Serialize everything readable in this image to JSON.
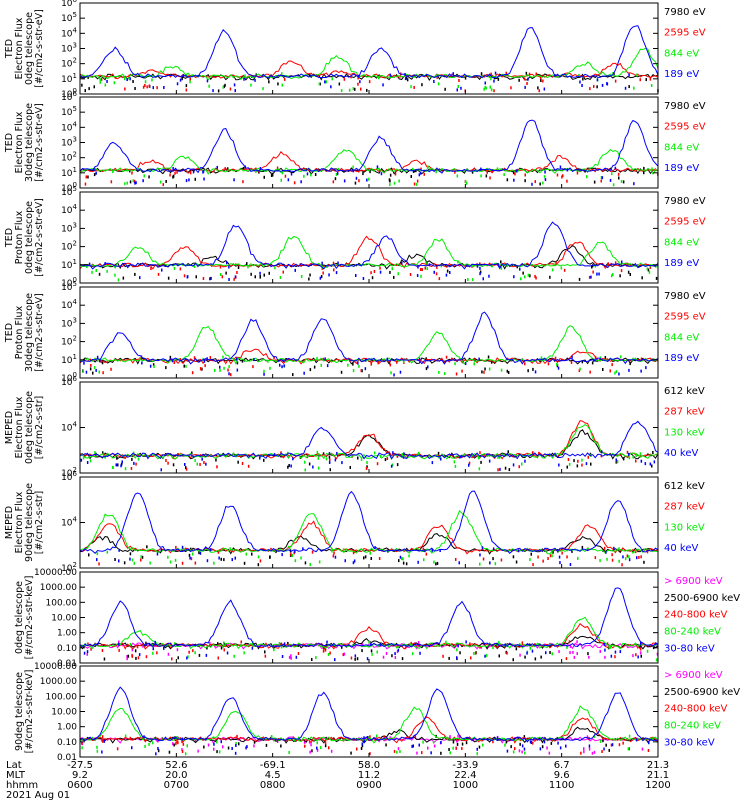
{
  "colors": {
    "black": "#000000",
    "red": "#ff0000",
    "green": "#00ee00",
    "blue": "#0000ff",
    "magenta": "#ff00ff"
  },
  "chart_data": [
    {
      "type": "scatter",
      "ylabel": [
        "TED",
        "Electron Flux",
        "0deg telescope",
        "[#/cm2-s-str-eV]"
      ],
      "yscale": "log",
      "ylim_exp": [
        0,
        6
      ],
      "yticks": [
        "10^0",
        "10^1",
        "10^2",
        "10^3",
        "10^4",
        "10^5",
        "10^6"
      ],
      "series": [
        {
          "name": "7980 eV",
          "color": "#000000",
          "peaks": [
            {
              "t": 0.395,
              "v": 0.9
            },
            {
              "t": 0.6,
              "v": 1.0
            }
          ]
        },
        {
          "name": "2595 eV",
          "color": "#ff0000",
          "peaks": [
            {
              "t": 0.12,
              "v": 1.5
            },
            {
              "t": 0.365,
              "v": 2.2
            },
            {
              "t": 0.45,
              "v": 1.5
            },
            {
              "t": 0.83,
              "v": 1.3
            },
            {
              "t": 0.925,
              "v": 2.0
            }
          ]
        },
        {
          "name": "844 eV",
          "color": "#00ee00",
          "peaks": [
            {
              "t": 0.16,
              "v": 1.8
            },
            {
              "t": 0.445,
              "v": 2.5
            },
            {
              "t": 0.875,
              "v": 2.0
            },
            {
              "t": 0.975,
              "v": 3.0
            }
          ]
        },
        {
          "name": "189 eV",
          "color": "#0000ff",
          "peaks": [
            {
              "t": 0.06,
              "v": 3.0
            },
            {
              "t": 0.25,
              "v": 4.2
            },
            {
              "t": 0.52,
              "v": 3.0
            },
            {
              "t": 0.78,
              "v": 4.4
            },
            {
              "t": 0.96,
              "v": 4.6
            }
          ]
        }
      ]
    },
    {
      "type": "scatter",
      "ylabel": [
        "TED",
        "Electron Flux",
        "30deg telescope",
        "[#/cm2-s-str-eV]"
      ],
      "yscale": "log",
      "ylim_exp": [
        0,
        6
      ],
      "yticks": [
        "10^0",
        "10^1",
        "10^2",
        "10^3",
        "10^4",
        "10^5",
        "10^6"
      ],
      "series": [
        {
          "name": "7980 eV",
          "color": "#000000",
          "peaks": [
            {
              "t": 0.35,
              "v": 1.0
            },
            {
              "t": 0.85,
              "v": 1.1
            }
          ]
        },
        {
          "name": "2595 eV",
          "color": "#ff0000",
          "peaks": [
            {
              "t": 0.12,
              "v": 1.8
            },
            {
              "t": 0.35,
              "v": 2.3
            },
            {
              "t": 0.58,
              "v": 1.8
            },
            {
              "t": 0.83,
              "v": 2.0
            }
          ]
        },
        {
          "name": "844 eV",
          "color": "#00ee00",
          "peaks": [
            {
              "t": 0.18,
              "v": 2.0
            },
            {
              "t": 0.46,
              "v": 2.5
            },
            {
              "t": 0.92,
              "v": 2.5
            }
          ]
        },
        {
          "name": "189 eV",
          "color": "#0000ff",
          "peaks": [
            {
              "t": 0.06,
              "v": 3.0
            },
            {
              "t": 0.25,
              "v": 3.8
            },
            {
              "t": 0.52,
              "v": 3.3
            },
            {
              "t": 0.78,
              "v": 4.5
            },
            {
              "t": 0.96,
              "v": 4.4
            }
          ]
        }
      ]
    },
    {
      "type": "scatter",
      "ylabel": [
        "TED",
        "Proton Flux",
        "0deg telescope",
        "[#/cm2-s-str-eV]"
      ],
      "yscale": "log",
      "ylim_exp": [
        0,
        5
      ],
      "yticks": [
        "10^0",
        "10^1",
        "10^2",
        "10^3",
        "10^4",
        "10^5"
      ],
      "series": [
        {
          "name": "7980 eV",
          "color": "#000000",
          "peaks": [
            {
              "t": 0.23,
              "v": 1.4
            },
            {
              "t": 0.58,
              "v": 1.5
            },
            {
              "t": 0.85,
              "v": 2.0
            }
          ]
        },
        {
          "name": "2595 eV",
          "color": "#ff0000",
          "peaks": [
            {
              "t": 0.18,
              "v": 2.0
            },
            {
              "t": 0.5,
              "v": 2.5
            },
            {
              "t": 0.86,
              "v": 2.3
            }
          ]
        },
        {
          "name": "844 eV",
          "color": "#00ee00",
          "peaks": [
            {
              "t": 0.1,
              "v": 2.0
            },
            {
              "t": 0.37,
              "v": 2.6
            },
            {
              "t": 0.62,
              "v": 2.4
            },
            {
              "t": 0.9,
              "v": 2.2
            }
          ]
        },
        {
          "name": "189 eV",
          "color": "#0000ff",
          "peaks": [
            {
              "t": 0.27,
              "v": 3.2
            },
            {
              "t": 0.53,
              "v": 2.5
            },
            {
              "t": 0.82,
              "v": 3.3
            }
          ]
        }
      ]
    },
    {
      "type": "scatter",
      "ylabel": [
        "TED",
        "Proton Flux",
        "30deg telescope",
        "[#/cm2-s-str-eV]"
      ],
      "yscale": "log",
      "ylim_exp": [
        0,
        5
      ],
      "yticks": [
        "10^0",
        "10^1",
        "10^2",
        "10^3",
        "10^4",
        "10^5"
      ],
      "series": [
        {
          "name": "7980 eV",
          "color": "#000000",
          "peaks": [
            {
              "t": 0.62,
              "v": 0.8
            },
            {
              "t": 0.8,
              "v": 0.9
            }
          ]
        },
        {
          "name": "2595 eV",
          "color": "#ff0000",
          "peaks": [
            {
              "t": 0.3,
              "v": 1.6
            },
            {
              "t": 0.87,
              "v": 1.5
            }
          ]
        },
        {
          "name": "844 eV",
          "color": "#00ee00",
          "peaks": [
            {
              "t": 0.22,
              "v": 2.8
            },
            {
              "t": 0.62,
              "v": 2.5
            },
            {
              "t": 0.85,
              "v": 2.8
            }
          ]
        },
        {
          "name": "189 eV",
          "color": "#0000ff",
          "peaks": [
            {
              "t": 0.07,
              "v": 2.5
            },
            {
              "t": 0.3,
              "v": 3.2
            },
            {
              "t": 0.42,
              "v": 3.3
            },
            {
              "t": 0.7,
              "v": 3.5
            }
          ]
        }
      ]
    },
    {
      "type": "scatter",
      "ylabel": [
        "MEPED",
        "Electron Flux",
        "0deg telescope",
        "[#/cm2-s-str]"
      ],
      "yscale": "log",
      "ylim_exp": [
        1,
        7
      ],
      "yticks": [
        "10^2",
        "10^4",
        "10^6"
      ],
      "series": [
        {
          "name": "612 keV",
          "color": "#000000",
          "peaks": [
            {
              "t": 0.5,
              "v": 3.4
            },
            {
              "t": 0.87,
              "v": 3.7
            }
          ]
        },
        {
          "name": "287 keV",
          "color": "#ff0000",
          "peaks": [
            {
              "t": 0.5,
              "v": 3.6
            },
            {
              "t": 0.87,
              "v": 4.5
            }
          ]
        },
        {
          "name": "130 keV",
          "color": "#00ee00",
          "peaks": [
            {
              "t": 0.87,
              "v": 4.2
            }
          ]
        },
        {
          "name": "40 keV",
          "color": "#0000ff",
          "peaks": [
            {
              "t": 0.42,
              "v": 4.0
            },
            {
              "t": 0.965,
              "v": 4.4
            }
          ]
        }
      ]
    },
    {
      "type": "scatter",
      "ylabel": [
        "MEPED",
        "Electron Flux",
        "90deg telescope",
        "[#/cm2-s-str]"
      ],
      "yscale": "log",
      "ylim_exp": [
        1,
        7
      ],
      "yticks": [
        "10^2",
        "10^4",
        "10^6"
      ],
      "series": [
        {
          "name": "612 keV",
          "color": "#000000",
          "peaks": [
            {
              "t": 0.04,
              "v": 3.0
            },
            {
              "t": 0.38,
              "v": 3.0
            },
            {
              "t": 0.62,
              "v": 3.2
            },
            {
              "t": 0.87,
              "v": 3.0
            }
          ]
        },
        {
          "name": "287 keV",
          "color": "#ff0000",
          "peaks": [
            {
              "t": 0.05,
              "v": 4.0
            },
            {
              "t": 0.4,
              "v": 4.0
            },
            {
              "t": 0.62,
              "v": 3.8
            },
            {
              "t": 0.88,
              "v": 3.8
            }
          ]
        },
        {
          "name": "130 keV",
          "color": "#00ee00",
          "peaks": [
            {
              "t": 0.05,
              "v": 4.6
            },
            {
              "t": 0.4,
              "v": 4.6
            },
            {
              "t": 0.66,
              "v": 4.7
            }
          ]
        },
        {
          "name": "40 keV",
          "color": "#0000ff",
          "peaks": [
            {
              "t": 0.1,
              "v": 6.0
            },
            {
              "t": 0.26,
              "v": 5.2
            },
            {
              "t": 0.47,
              "v": 6.0
            },
            {
              "t": 0.68,
              "v": 6.0
            },
            {
              "t": 0.93,
              "v": 5.5
            }
          ]
        }
      ]
    },
    {
      "type": "scatter",
      "ylabel": [
        "",
        "0deg telescope",
        "[#/cm2-s-str-keV]"
      ],
      "yscale": "log",
      "ylim_exp": [
        -2,
        4
      ],
      "yticks": [
        "0.01",
        "0.10",
        "1.00",
        "10.00",
        "100.00",
        "1000.00",
        "10000.00"
      ],
      "series": [
        {
          "name": "> 6900 keV",
          "color": "#ff00ff",
          "peaks": [
            {
              "t": 0.5,
              "v": -1.3
            },
            {
              "t": 0.87,
              "v": -1.2
            }
          ]
        },
        {
          "name": "2500-6900 keV",
          "color": "#000000",
          "peaks": [
            {
              "t": 0.5,
              "v": -0.5
            },
            {
              "t": 0.87,
              "v": -0.2
            }
          ]
        },
        {
          "name": "240-800 keV",
          "color": "#ff0000",
          "peaks": [
            {
              "t": 0.5,
              "v": 0.3
            },
            {
              "t": 0.87,
              "v": 0.5
            }
          ]
        },
        {
          "name": "80-240 keV",
          "color": "#00ee00",
          "peaks": [
            {
              "t": 0.1,
              "v": 0.1
            },
            {
              "t": 0.87,
              "v": 1.0
            }
          ]
        },
        {
          "name": "30-80 keV",
          "color": "#0000ff",
          "peaks": [
            {
              "t": 0.07,
              "v": 2.0
            },
            {
              "t": 0.26,
              "v": 2.0
            },
            {
              "t": 0.66,
              "v": 2.0
            },
            {
              "t": 0.93,
              "v": 3.0
            }
          ]
        }
      ]
    },
    {
      "type": "scatter",
      "ylabel": [
        "",
        "90deg telescope",
        "[#/cm2-s-str-keV]"
      ],
      "yscale": "log",
      "ylim_exp": [
        -2,
        4
      ],
      "yticks": [
        "0.01",
        "0.10",
        "1.00",
        "10.00",
        "100.00",
        "1000.00",
        "10000.00"
      ],
      "series": [
        {
          "name": "> 6900 keV",
          "color": "#ff00ff",
          "peaks": [
            {
              "t": 0.38,
              "v": -1.2
            },
            {
              "t": 0.5,
              "v": -1.0
            },
            {
              "t": 0.87,
              "v": -0.9
            }
          ]
        },
        {
          "name": "2500-6900 keV",
          "color": "#000000",
          "peaks": [
            {
              "t": 0.55,
              "v": -0.3
            },
            {
              "t": 0.87,
              "v": 0.0
            }
          ]
        },
        {
          "name": "240-800 keV",
          "color": "#ff0000",
          "peaks": [
            {
              "t": 0.6,
              "v": 0.6
            },
            {
              "t": 0.87,
              "v": 0.6
            }
          ]
        },
        {
          "name": "80-240 keV",
          "color": "#00ee00",
          "peaks": [
            {
              "t": 0.07,
              "v": 1.2
            },
            {
              "t": 0.27,
              "v": 1.0
            },
            {
              "t": 0.58,
              "v": 1.2
            },
            {
              "t": 0.87,
              "v": 1.3
            }
          ]
        },
        {
          "name": "30-80 keV",
          "color": "#0000ff",
          "peaks": [
            {
              "t": 0.07,
              "v": 2.5
            },
            {
              "t": 0.26,
              "v": 2.0
            },
            {
              "t": 0.42,
              "v": 2.2
            },
            {
              "t": 0.62,
              "v": 2.5
            },
            {
              "t": 0.93,
              "v": 2.2
            }
          ]
        }
      ]
    }
  ],
  "x_axis": {
    "row_labels": [
      "Lat",
      "MLT",
      "hhmm",
      "2021 Aug 01"
    ],
    "ticks": [
      {
        "t": 0.0,
        "lat": "-27.5",
        "mlt": "9.2",
        "hhmm": "0600"
      },
      {
        "t": 0.1667,
        "lat": "52.6",
        "mlt": "20.0",
        "hhmm": "0700"
      },
      {
        "t": 0.3333,
        "lat": "-69.1",
        "mlt": "4.5",
        "hhmm": "0800"
      },
      {
        "t": 0.5,
        "lat": "58.0",
        "mlt": "11.2",
        "hhmm": "0900"
      },
      {
        "t": 0.6667,
        "lat": "-33.9",
        "mlt": "22.4",
        "hhmm": "1000"
      },
      {
        "t": 0.8333,
        "lat": "6.7",
        "mlt": "9.6",
        "hhmm": "1100"
      },
      {
        "t": 1.0,
        "lat": "21.3",
        "mlt": "21.1",
        "hhmm": "1200"
      }
    ]
  }
}
